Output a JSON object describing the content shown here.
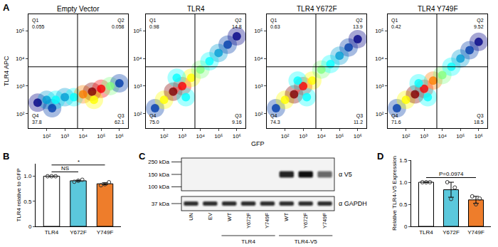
{
  "panel_A": {
    "panel_label": "A",
    "x_label": "GFP",
    "y_label": "TLR4 APC"
  },
  "chart_data": [
    {
      "type": "scatter",
      "title": "Empty Vector",
      "log": true,
      "grid": false,
      "xlim": [
        10,
        3000000
      ],
      "xticks": [
        {
          "value": 100,
          "label": "10²"
        },
        {
          "value": 1000,
          "label": "10³"
        },
        {
          "value": 10000,
          "label": "10⁴"
        },
        {
          "value": 100000,
          "label": "10⁵"
        },
        {
          "value": 1000000,
          "label": "10⁶"
        }
      ],
      "ylim": [
        30,
        400000
      ],
      "yticks": [
        {
          "value": 100,
          "label": "10²"
        },
        {
          "value": 1000,
          "label": "10³"
        },
        {
          "value": 10000,
          "label": "10⁴"
        },
        {
          "value": 100000,
          "label": "10⁵"
        }
      ],
      "gates": {
        "x": 5000,
        "y": 5000
      },
      "quadrants": [
        {
          "name": "Q1",
          "value": 0.055
        },
        {
          "name": "Q2",
          "value": 0.058
        },
        {
          "name": "Q4",
          "value": 37.8
        },
        {
          "name": "Q3",
          "value": 62.1
        }
      ],
      "x": [
        32,
        100,
        316,
        1000,
        3162,
        10000,
        31623,
        100000,
        316228,
        1000000,
        200,
        39811
      ],
      "y": [
        251,
        316,
        316,
        398,
        398,
        501,
        631,
        794,
        1000,
        1259,
        158,
        316
      ],
      "density": [
        0.2,
        0.4,
        0.5,
        0.4,
        0.5,
        0.8,
        1.0,
        0.9,
        0.6,
        0.3,
        0.3,
        0.7
      ]
    },
    {
      "type": "scatter",
      "title": "TLR4",
      "log": true,
      "grid": false,
      "xlim": [
        10,
        3000000
      ],
      "xticks": [
        {
          "value": 100,
          "label": "10²"
        },
        {
          "value": 1000,
          "label": "10³"
        },
        {
          "value": 10000,
          "label": "10⁴"
        },
        {
          "value": 100000,
          "label": "10⁵"
        },
        {
          "value": 1000000,
          "label": "10⁶"
        }
      ],
      "ylim": [
        30,
        400000
      ],
      "yticks": [
        {
          "value": 100,
          "label": "10²"
        },
        {
          "value": 1000,
          "label": "10³"
        },
        {
          "value": 10000,
          "label": "10⁴"
        },
        {
          "value": 100000,
          "label": "10⁵"
        }
      ],
      "gates": {
        "x": 5000,
        "y": 5000
      },
      "quadrants": [
        {
          "name": "Q1",
          "value": 0.98
        },
        {
          "name": "Q2",
          "value": 14.8
        },
        {
          "name": "Q4",
          "value": 75.0,
          "label": "75.0"
        },
        {
          "name": "Q3",
          "value": 9.16
        }
      ],
      "x": [
        32,
        100,
        316,
        1000,
        3162,
        10000,
        31623,
        100000,
        316228,
        1000000,
        1585,
        501
      ],
      "y": [
        158,
        316,
        631,
        1000,
        1995,
        3981,
        7943,
        15849,
        31623,
        63096,
        398,
        1995
      ],
      "density": [
        0.3,
        0.7,
        1.0,
        0.9,
        0.7,
        0.6,
        0.5,
        0.4,
        0.3,
        0.2,
        0.5,
        0.5
      ]
    },
    {
      "type": "scatter",
      "title": "TLR4 Y672F",
      "log": true,
      "grid": false,
      "xlim": [
        10,
        3000000
      ],
      "xticks": [
        {
          "value": 100,
          "label": "10²"
        },
        {
          "value": 1000,
          "label": "10³"
        },
        {
          "value": 10000,
          "label": "10⁴"
        },
        {
          "value": 100000,
          "label": "10⁵"
        },
        {
          "value": 1000000,
          "label": "10⁶"
        }
      ],
      "ylim": [
        30,
        400000
      ],
      "yticks": [
        {
          "value": 100,
          "label": "10²"
        },
        {
          "value": 1000,
          "label": "10³"
        },
        {
          "value": 10000,
          "label": "10⁴"
        },
        {
          "value": 100000,
          "label": "10⁵"
        }
      ],
      "gates": {
        "x": 5000,
        "y": 5000
      },
      "quadrants": [
        {
          "name": "Q1",
          "value": 0.63
        },
        {
          "name": "Q2",
          "value": 13.9
        },
        {
          "name": "Q4",
          "value": 74.3
        },
        {
          "name": "Q3",
          "value": 11.2
        }
      ],
      "x": [
        32,
        100,
        316,
        1000,
        3162,
        10000,
        31623,
        100000,
        316228,
        1000000,
        1585,
        501
      ],
      "y": [
        158,
        316,
        501,
        1000,
        1585,
        3981,
        6310,
        12589,
        25119,
        50119,
        398,
        1585
      ],
      "density": [
        0.3,
        0.7,
        1.0,
        0.9,
        0.7,
        0.6,
        0.5,
        0.4,
        0.3,
        0.2,
        0.5,
        0.5
      ]
    },
    {
      "type": "scatter",
      "title": "TLR4 Y749F",
      "log": true,
      "grid": false,
      "xlim": [
        10,
        3000000
      ],
      "xticks": [
        {
          "value": 100,
          "label": "10²"
        },
        {
          "value": 1000,
          "label": "10³"
        },
        {
          "value": 10000,
          "label": "10⁴"
        },
        {
          "value": 100000,
          "label": "10⁵"
        },
        {
          "value": 1000000,
          "label": "10⁶"
        }
      ],
      "ylim": [
        30,
        400000
      ],
      "yticks": [
        {
          "value": 100,
          "label": "10²"
        },
        {
          "value": 1000,
          "label": "10³"
        },
        {
          "value": 10000,
          "label": "10⁴"
        },
        {
          "value": 100000,
          "label": "10⁵"
        }
      ],
      "gates": {
        "x": 5000,
        "y": 5000
      },
      "quadrants": [
        {
          "name": "Q1",
          "value": 0.42
        },
        {
          "name": "Q2",
          "value": 9.52
        },
        {
          "name": "Q4",
          "value": 71.6
        },
        {
          "name": "Q3",
          "value": 18.5
        }
      ],
      "x": [
        32,
        100,
        316,
        1000,
        3162,
        10000,
        31623,
        100000,
        316228,
        1000000,
        1585,
        501
      ],
      "y": [
        158,
        316,
        501,
        794,
        1585,
        2512,
        5012,
        10000,
        19953,
        39811,
        398,
        1259
      ],
      "density": [
        0.3,
        0.7,
        1.0,
        0.9,
        0.8,
        0.6,
        0.5,
        0.4,
        0.3,
        0.2,
        0.5,
        0.5
      ]
    },
    {
      "type": "bar",
      "panel_label": "B",
      "y_label": "TLR4 relative to GFP",
      "grid": false,
      "categories": [
        "TLR4",
        "Y672F",
        "Y749F"
      ],
      "values": [
        1.0,
        0.91,
        0.85
      ],
      "errors": [
        0,
        0.01,
        0.02
      ],
      "points": [
        [
          1.0,
          1.0,
          1.0
        ],
        [
          0.89,
          0.91,
          0.93
        ],
        [
          0.82,
          0.84,
          0.88
        ]
      ],
      "colors": [
        "#ffffff",
        "#5bc8dc",
        "#ee7d2b"
      ],
      "marker": "circle-open",
      "ylim": [
        0,
        1.25
      ],
      "yticks": [
        0,
        0.5,
        {
          "value": 1,
          "label": "1.0"
        }
      ],
      "comparisons": [
        {
          "from": "TLR4",
          "to": "Y672F",
          "label": "NS"
        },
        {
          "from": "TLR4",
          "to": "Y749F",
          "label": "*"
        }
      ]
    },
    {
      "type": "bar",
      "panel_label": "D",
      "y_label": "Relative TLR4-V5 Expression",
      "grid": false,
      "categories": [
        "TLR4",
        "Y672F",
        "Y749F"
      ],
      "values": [
        1.0,
        0.83,
        0.6
      ],
      "errors": [
        0,
        0.17,
        0.08
      ],
      "points": [
        [
          1.0,
          1.0,
          1.0
        ],
        [
          1.0,
          0.62,
          0.88
        ],
        [
          0.68,
          0.5,
          0.63
        ]
      ],
      "colors": [
        "#ffffff",
        "#5bc8dc",
        "#ee7d2b"
      ],
      "marker": "circle-open",
      "ylim": [
        0,
        1.5
      ],
      "yticks": [
        0,
        0.5,
        {
          "value": 1,
          "label": "1.0"
        },
        1.5
      ],
      "comparisons": [
        {
          "from": "TLR4",
          "to": "Y749F",
          "label": "P=0.0974"
        }
      ]
    }
  ],
  "blot": {
    "panel_label": "C",
    "lanes": [
      "UN",
      "EV",
      "WT",
      "Y672F",
      "Y749F",
      "WT",
      "Y672F",
      "Y749F"
    ],
    "groups": [
      {
        "label": "TLR4",
        "lanes": [
          2,
          3,
          4
        ]
      },
      {
        "label": "TLR4-V5",
        "lanes": [
          5,
          6,
          7
        ]
      }
    ],
    "rows": [
      {
        "antibody": "α V5",
        "intensity": [
          0,
          0,
          0,
          0,
          0,
          0.9,
          1.0,
          0.6
        ]
      },
      {
        "antibody": "α GAPDH",
        "intensity": [
          0.85,
          0.85,
          0.85,
          0.85,
          0.85,
          0.85,
          0.85,
          0.85
        ]
      }
    ],
    "markers": [
      {
        "label": "250 kDa",
        "row": 0
      },
      {
        "label": "150 kDa",
        "row": 0
      },
      {
        "label": "100 kDa",
        "row": 0
      },
      {
        "label": "37 kDa",
        "row": 1
      }
    ]
  }
}
